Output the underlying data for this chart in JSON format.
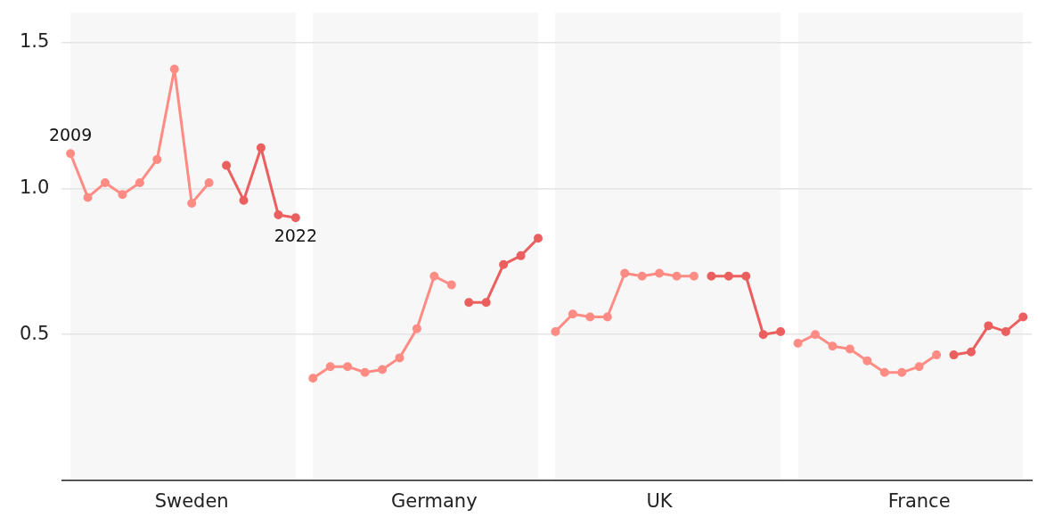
{
  "chart_data": {
    "type": "line",
    "categories": [
      null,
      null,
      null,
      null,
      null,
      null,
      null,
      "Sweden",
      null,
      null,
      null,
      null,
      null,
      null,
      null,
      null,
      null,
      null,
      null,
      null,
      null,
      "Germany",
      null,
      null,
      null,
      null,
      null,
      null,
      null,
      null,
      null,
      null,
      null,
      null,
      "UK",
      null,
      null,
      null,
      null,
      null,
      null,
      null,
      null,
      null,
      null,
      null,
      null,
      null,
      null,
      "France",
      null,
      null,
      null,
      null,
      null,
      null
    ],
    "ylim": [
      0,
      1.5
    ],
    "yticks": [
      0.5,
      {
        "value": 1,
        "label": "1.0"
      },
      1.5
    ],
    "series": [
      {
        "color": "#ff8c84",
        "values": [
          1.12,
          0.97,
          1.02,
          0.98,
          1.02,
          1.1,
          1.41,
          0.95,
          1.02,
          null,
          null,
          null,
          null,
          null,
          0.35,
          0.39,
          0.39,
          0.37,
          0.38,
          0.42,
          0.52,
          0.7,
          0.67,
          null,
          null,
          null,
          null,
          null,
          0.51,
          0.57,
          0.56,
          0.56,
          0.71,
          0.7,
          0.71,
          0.7,
          0.7,
          null,
          null,
          null,
          null,
          null,
          0.47,
          0.5,
          0.46,
          0.45,
          0.41,
          0.37,
          0.37,
          0.39,
          0.43,
          null,
          null,
          null,
          null,
          null
        ]
      },
      {
        "color": "#eb5f5f",
        "values": [
          null,
          null,
          null,
          null,
          null,
          null,
          null,
          null,
          null,
          1.08,
          0.96,
          1.14,
          0.91,
          0.9,
          null,
          null,
          null,
          null,
          null,
          null,
          null,
          null,
          null,
          0.61,
          0.61,
          0.74,
          0.77,
          0.83,
          null,
          null,
          null,
          null,
          null,
          null,
          null,
          null,
          null,
          0.7,
          0.7,
          0.7,
          0.5,
          0.51,
          null,
          null,
          null,
          null,
          null,
          null,
          null,
          null,
          null,
          0.43,
          0.44,
          0.53,
          0.51,
          0.56
        ]
      }
    ],
    "annotations": [
      {
        "text": "2009",
        "y": 1.12
      },
      {
        "text": "2022",
        "y": 0.9
      }
    ],
    "grid": "y",
    "marker": "circle"
  }
}
